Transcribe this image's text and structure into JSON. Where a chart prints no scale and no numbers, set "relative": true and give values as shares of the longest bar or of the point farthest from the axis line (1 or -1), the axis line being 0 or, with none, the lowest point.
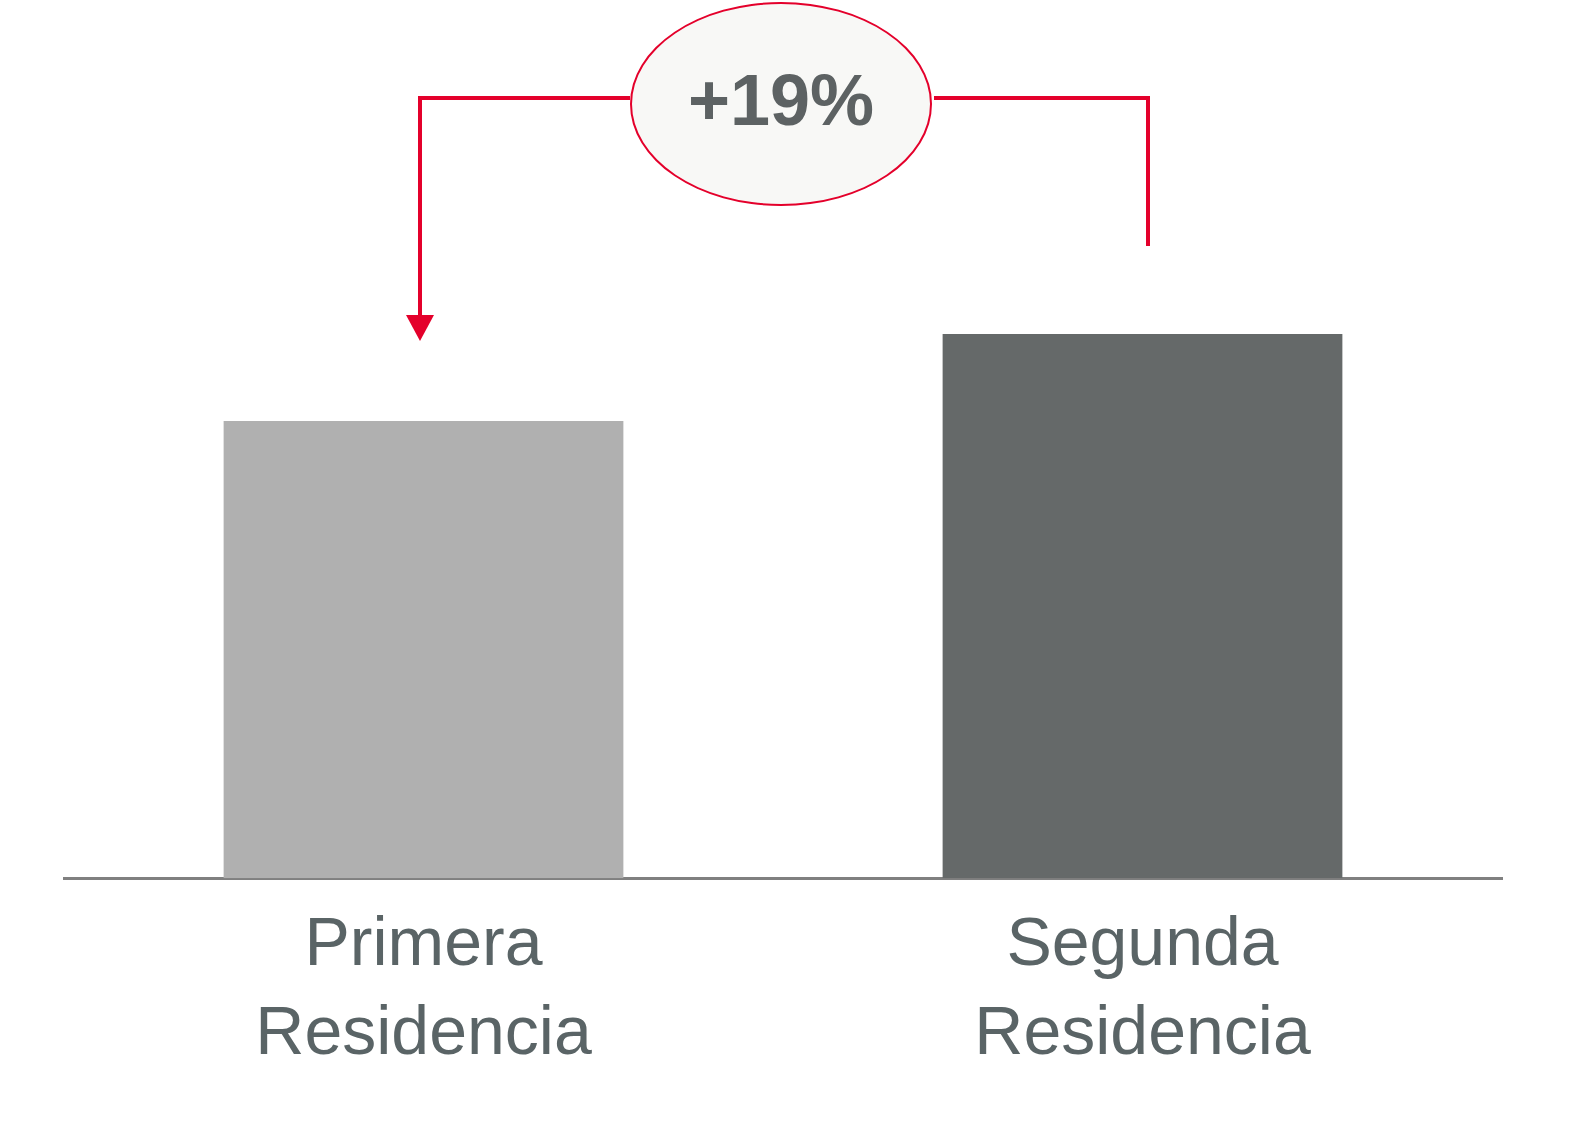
{
  "chart_data": {
    "type": "bar",
    "relative": true,
    "categories": [
      "Primera Residencia",
      "Segunda Residencia"
    ],
    "values": [
      0.84,
      1
    ],
    "colors": [
      "#b0b0b0",
      "#656969"
    ],
    "annotations": [
      "+19%"
    ],
    "legend": false,
    "grid": false
  }
}
